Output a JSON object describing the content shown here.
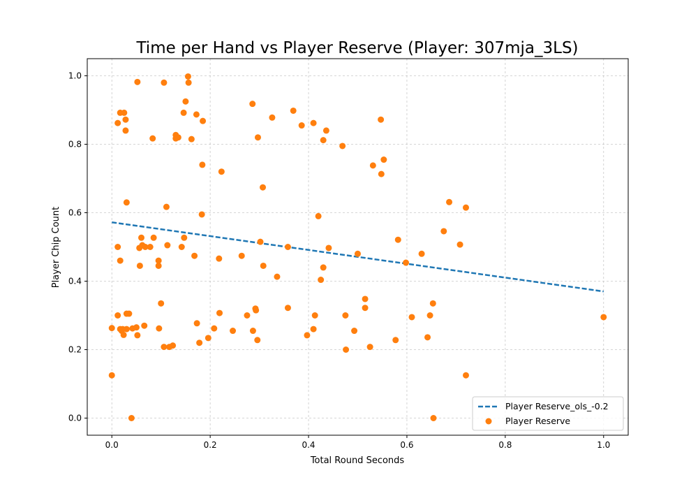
{
  "chart_data": {
    "type": "scatter",
    "title": "Time per Hand vs Player Reserve (Player: 307mja_3LS)",
    "xlabel": "Total Round Seconds",
    "ylabel": "Player Chip Count",
    "xlim": [
      -0.05,
      1.05
    ],
    "ylim": [
      -0.05,
      1.05
    ],
    "xticks": [
      0.0,
      0.2,
      0.4,
      0.6,
      0.8,
      1.0
    ],
    "yticks": [
      0.0,
      0.2,
      0.4,
      0.6,
      0.8,
      1.0
    ],
    "xtick_labels": [
      "0.0",
      "0.2",
      "0.4",
      "0.6",
      "0.8",
      "1.0"
    ],
    "ytick_labels": [
      "0.0",
      "0.2",
      "0.4",
      "0.6",
      "0.8",
      "1.0"
    ],
    "grid": true,
    "legend_position": "lower-right",
    "series": [
      {
        "name": "Player Reserve_ols_-0.2",
        "kind": "line",
        "style": "dashed",
        "color": "#1f77b4",
        "x": [
          0.0,
          1.0
        ],
        "y": [
          0.572,
          0.37
        ]
      },
      {
        "name": "Player Reserve",
        "kind": "scatter",
        "color": "#ff7f0e",
        "points": [
          [
            0.0,
            0.263
          ],
          [
            0.0,
            0.125
          ],
          [
            0.012,
            0.862
          ],
          [
            0.012,
            0.5
          ],
          [
            0.012,
            0.3
          ],
          [
            0.017,
            0.892
          ],
          [
            0.017,
            0.46
          ],
          [
            0.017,
            0.26
          ],
          [
            0.02,
            0.255
          ],
          [
            0.022,
            0.26
          ],
          [
            0.024,
            0.243
          ],
          [
            0.025,
            0.892
          ],
          [
            0.028,
            0.872
          ],
          [
            0.028,
            0.84
          ],
          [
            0.03,
            0.63
          ],
          [
            0.03,
            0.305
          ],
          [
            0.03,
            0.26
          ],
          [
            0.035,
            0.305
          ],
          [
            0.04,
            0.0
          ],
          [
            0.042,
            0.262
          ],
          [
            0.05,
            0.265
          ],
          [
            0.052,
            0.982
          ],
          [
            0.052,
            0.242
          ],
          [
            0.056,
            0.497
          ],
          [
            0.057,
            0.445
          ],
          [
            0.06,
            0.527
          ],
          [
            0.062,
            0.505
          ],
          [
            0.066,
            0.27
          ],
          [
            0.068,
            0.5
          ],
          [
            0.078,
            0.5
          ],
          [
            0.083,
            0.817
          ],
          [
            0.085,
            0.527
          ],
          [
            0.095,
            0.46
          ],
          [
            0.095,
            0.445
          ],
          [
            0.096,
            0.262
          ],
          [
            0.1,
            0.335
          ],
          [
            0.106,
            0.98
          ],
          [
            0.106,
            0.208
          ],
          [
            0.111,
            0.617
          ],
          [
            0.113,
            0.505
          ],
          [
            0.117,
            0.208
          ],
          [
            0.124,
            0.212
          ],
          [
            0.13,
            0.827
          ],
          [
            0.13,
            0.817
          ],
          [
            0.135,
            0.82
          ],
          [
            0.142,
            0.5
          ],
          [
            0.146,
            0.892
          ],
          [
            0.147,
            0.527
          ],
          [
            0.15,
            0.925
          ],
          [
            0.155,
            0.998
          ],
          [
            0.156,
            0.98
          ],
          [
            0.162,
            0.815
          ],
          [
            0.168,
            0.474
          ],
          [
            0.172,
            0.887
          ],
          [
            0.173,
            0.277
          ],
          [
            0.178,
            0.22
          ],
          [
            0.183,
            0.595
          ],
          [
            0.184,
            0.74
          ],
          [
            0.185,
            0.868
          ],
          [
            0.196,
            0.234
          ],
          [
            0.208,
            0.262
          ],
          [
            0.218,
            0.466
          ],
          [
            0.219,
            0.307
          ],
          [
            0.223,
            0.72
          ],
          [
            0.246,
            0.255
          ],
          [
            0.264,
            0.474
          ],
          [
            0.275,
            0.3
          ],
          [
            0.286,
            0.918
          ],
          [
            0.287,
            0.255
          ],
          [
            0.292,
            0.32
          ],
          [
            0.293,
            0.315
          ],
          [
            0.296,
            0.228
          ],
          [
            0.297,
            0.82
          ],
          [
            0.302,
            0.515
          ],
          [
            0.307,
            0.674
          ],
          [
            0.308,
            0.445
          ],
          [
            0.326,
            0.878
          ],
          [
            0.336,
            0.413
          ],
          [
            0.358,
            0.322
          ],
          [
            0.358,
            0.5
          ],
          [
            0.369,
            0.898
          ],
          [
            0.386,
            0.855
          ],
          [
            0.397,
            0.242
          ],
          [
            0.41,
            0.862
          ],
          [
            0.41,
            0.26
          ],
          [
            0.413,
            0.3
          ],
          [
            0.42,
            0.59
          ],
          [
            0.425,
            0.404
          ],
          [
            0.43,
            0.812
          ],
          [
            0.43,
            0.44
          ],
          [
            0.436,
            0.84
          ],
          [
            0.441,
            0.497
          ],
          [
            0.469,
            0.795
          ],
          [
            0.475,
            0.3
          ],
          [
            0.476,
            0.2
          ],
          [
            0.493,
            0.255
          ],
          [
            0.5,
            0.48
          ],
          [
            0.515,
            0.348
          ],
          [
            0.515,
            0.322
          ],
          [
            0.525,
            0.208
          ],
          [
            0.531,
            0.738
          ],
          [
            0.547,
            0.872
          ],
          [
            0.548,
            0.713
          ],
          [
            0.553,
            0.755
          ],
          [
            0.577,
            0.228
          ],
          [
            0.582,
            0.521
          ],
          [
            0.598,
            0.454
          ],
          [
            0.61,
            0.295
          ],
          [
            0.63,
            0.48
          ],
          [
            0.642,
            0.236
          ],
          [
            0.647,
            0.3
          ],
          [
            0.653,
            0.335
          ],
          [
            0.654,
            0.0
          ],
          [
            0.675,
            0.546
          ],
          [
            0.686,
            0.631
          ],
          [
            0.708,
            0.507
          ],
          [
            0.72,
            0.615
          ],
          [
            0.72,
            0.125
          ],
          [
            1.0,
            0.295
          ]
        ]
      }
    ]
  }
}
